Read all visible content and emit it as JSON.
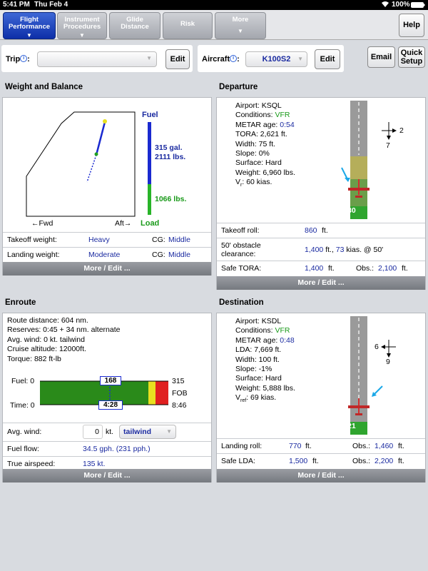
{
  "status": {
    "time": "5:41 PM",
    "date": "Thu Feb 4",
    "battery": "100%"
  },
  "tabs": [
    {
      "line1": "Flight",
      "line2": "Performance"
    },
    {
      "line1": "Instrument",
      "line2": "Procedures"
    },
    {
      "line1": "Glide",
      "line2": "Distance"
    },
    {
      "line1": "Risk",
      "line2": ""
    },
    {
      "line1": "More",
      "line2": ""
    }
  ],
  "help_label": "Help",
  "trip": {
    "label": "Trip",
    "info": "i",
    "edit": "Edit"
  },
  "aircraft": {
    "label": "Aircraft",
    "info": "i",
    "value": "K100S2",
    "edit": "Edit"
  },
  "email_label": "Email",
  "quick_setup": {
    "line1": "Quick",
    "line2": "Setup"
  },
  "wb": {
    "title": "Weight and Balance",
    "fuel_label": "Fuel",
    "fuel_gal": "315 gal.",
    "fuel_lbs": "2111 lbs.",
    "load_lbs": "1066 lbs.",
    "load_label": "Load",
    "fwd": "←Fwd",
    "aft": "Aft→",
    "takeoff_label": "Takeoff weight:",
    "takeoff_value": "Heavy",
    "landing_label": "Landing weight:",
    "landing_value": "Moderate",
    "cg_label": "CG:",
    "cg_takeoff": "Middle",
    "cg_landing": "Middle",
    "more": "More / Edit ..."
  },
  "departure": {
    "title": "Departure",
    "airport": "Airport: KSQL",
    "conditions_label": "Conditions: ",
    "conditions_value": "VFR",
    "metar_label": "METAR age: ",
    "metar_value": "0:54",
    "tora": "TORA: 2,621 ft.",
    "width": "Width: 75 ft.",
    "slope": "Slope: 0%",
    "surface": "Surface: Hard",
    "weight": "Weight: 6,960 lbs.",
    "vr": "V",
    "vr_sub": "r",
    "vr_value": ": 60 kias.",
    "runway": "30",
    "wind_x": "2",
    "wind_y": "7",
    "takeoff_roll_label": "Takeoff roll:",
    "takeoff_roll_value": "860",
    "takeoff_roll_unit": "ft.",
    "obstacle_label1": "50' obstacle",
    "obstacle_label2": "clearance:",
    "obstacle_value": "1,400",
    "obstacle_mid": "ft.,",
    "obstacle_kias": "73",
    "obstacle_tail": "kias. @ 50'",
    "safe_tora_label": "Safe TORA:",
    "safe_tora_value": "1,400",
    "safe_tora_unit": "ft.",
    "obs_label": "Obs.:",
    "obs_value": "2,100",
    "obs_unit": "ft.",
    "more": "More / Edit ..."
  },
  "enroute": {
    "title": "Enroute",
    "route": "Route distance: 604 nm.",
    "reserves": "Reserves: 0:45 + 34 nm. alternate",
    "avg_wind_line": "Avg. wind: 0 kt. tailwind",
    "cruise": "Cruise altitude: 12000ft.",
    "torque": "Torque: 882 ft-lb",
    "fuel_label": "Fuel: 0",
    "time_label": "Time: 0",
    "fuel_mark": "168",
    "time_mark": "4:28",
    "fob_value": "315",
    "fob_label": "FOB",
    "endurance": "8:46",
    "avg_wind_label": "Avg. wind:",
    "avg_wind_value": "0",
    "avg_wind_unit": "kt.",
    "wind_dir": "tailwind",
    "fuel_flow_label": "Fuel flow:",
    "fuel_flow_value": "34.5 gph. (231 pph.)",
    "tas_label": "True airspeed:",
    "tas_value": "135 kt.",
    "more": "More / Edit ..."
  },
  "destination": {
    "title": "Destination",
    "airport": "Airport: KSDL",
    "conditions_label": "Conditions: ",
    "conditions_value": "VFR",
    "metar_label": "METAR age: ",
    "metar_value": "0:48",
    "lda": "LDA: 7,669 ft.",
    "width": "Width: 100 ft.",
    "slope": "Slope: -1%",
    "surface": "Surface: Hard",
    "weight": "Weight: 5,888 lbs.",
    "vref": "V",
    "vref_sub": "ref",
    "vref_value": ": 69 kias.",
    "runway": "21",
    "wind_x": "6",
    "wind_y": "9",
    "landing_roll_label": "Landing roll:",
    "landing_roll_value": "770",
    "landing_roll_unit": "ft.",
    "obs_label": "Obs.:",
    "obs_value": "1,460",
    "obs_unit": "ft.",
    "safe_lda_label": "Safe LDA:",
    "safe_lda_value": "1,500",
    "safe_lda_unit": "ft.",
    "obs2_label": "Obs.:",
    "obs2_value": "2,200",
    "obs2_unit": "ft.",
    "more": "More / Edit ..."
  },
  "colors": {
    "accent": "#0d2fa8",
    "value": "#1a2aa0",
    "vfr": "#1a9a1a",
    "fuel_bar": "#2a6c1a"
  }
}
